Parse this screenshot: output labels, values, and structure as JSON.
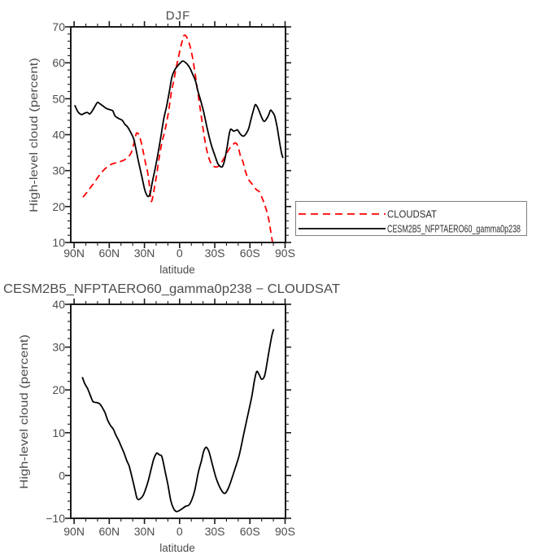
{
  "labels": {
    "top_title": "DJF",
    "bottom_title": "CESM2B5_NFPTAERO60_gamma0p238 − CLOUDSAT",
    "ylabel": "High-level cloud (percent)",
    "xlabel": "latitude"
  },
  "legend": {
    "entries": [
      {
        "label": "CLOUDSAT",
        "color": "#ff0000",
        "line": "dashed"
      },
      {
        "label": "CESM2B5_NFPTAERO60_gamma0p238",
        "color": "#000000",
        "line": "solid"
      }
    ]
  },
  "colors": {
    "axis": "#1a1a1a",
    "text": "#4d4d4d",
    "legend_border": "#808080",
    "cloudsat_red": "#ff0000",
    "model_black": "#000000",
    "background": "#ffffff"
  },
  "chart_data": [
    {
      "type": "line",
      "title": "DJF",
      "xlabel": "latitude",
      "ylabel": "High-level cloud (percent)",
      "ylim": [
        10,
        70
      ],
      "yticks": [
        10,
        20,
        30,
        40,
        50,
        60,
        70
      ],
      "y_minor_step": 2,
      "xticks": [
        {
          "lat": 90,
          "label": "90N"
        },
        {
          "lat": 60,
          "label": "60N"
        },
        {
          "lat": 30,
          "label": "30N"
        },
        {
          "lat": 0,
          "label": "0"
        },
        {
          "lat": -30,
          "label": "30S"
        },
        {
          "lat": -60,
          "label": "60S"
        },
        {
          "lat": -90,
          "label": "90S"
        }
      ],
      "x_minor_step_deg": 10,
      "legend_position": "outside-right",
      "series": [
        {
          "name": "CLOUDSAT",
          "color": "#ff0000",
          "line": "dashed",
          "points": [
            [
              82.5,
              22.6
            ],
            [
              79,
              24.0
            ],
            [
              76,
              25.3
            ],
            [
              73,
              26.6
            ],
            [
              70,
              28.0
            ],
            [
              67,
              29.3
            ],
            [
              64,
              30.4
            ],
            [
              61,
              31.2
            ],
            [
              58,
              31.8
            ],
            [
              55,
              32.1
            ],
            [
              52,
              32.3
            ],
            [
              50,
              32.6
            ],
            [
              47,
              33.0
            ],
            [
              44,
              33.8
            ],
            [
              41.5,
              34.8
            ],
            [
              39.5,
              36.9
            ],
            [
              38,
              38.9
            ],
            [
              36.8,
              40.4
            ],
            [
              35,
              40.1
            ],
            [
              33,
              38.2
            ],
            [
              31,
              35.2
            ],
            [
              29,
              32.0
            ],
            [
              27,
              29.0
            ],
            [
              25.5,
              25.0
            ],
            [
              24.3,
              21.5
            ],
            [
              23,
              22.5
            ],
            [
              21.5,
              25.2
            ],
            [
              19.5,
              29.0
            ],
            [
              17.5,
              33.5
            ],
            [
              15,
              38.0
            ],
            [
              13,
              40.5
            ],
            [
              11,
              43.5
            ],
            [
              9,
              47.3
            ],
            [
              7,
              51.9
            ],
            [
              5,
              55.0
            ],
            [
              3,
              58.5
            ],
            [
              1,
              61.5
            ],
            [
              -1,
              64.5
            ],
            [
              -2.5,
              66.3
            ],
            [
              -3.5,
              67.5
            ],
            [
              -5,
              67.6
            ],
            [
              -7,
              66.5
            ],
            [
              -9,
              64.5
            ],
            [
              -11,
              61.5
            ],
            [
              -13,
              57.5
            ],
            [
              -15,
              53.0
            ],
            [
              -17,
              48.5
            ],
            [
              -19,
              44.0
            ],
            [
              -21,
              39.5
            ],
            [
              -23,
              36.0
            ],
            [
              -25,
              33.5
            ],
            [
              -27,
              31.9
            ],
            [
              -29,
              31.2
            ],
            [
              -31,
              31.0
            ],
            [
              -33,
              31.2
            ],
            [
              -35,
              31.9
            ],
            [
              -38,
              33.5
            ],
            [
              -41,
              35.3
            ],
            [
              -44,
              36.8
            ],
            [
              -46,
              37.4
            ],
            [
              -48,
              37.7
            ],
            [
              -50,
              36.5
            ],
            [
              -52,
              34.0
            ],
            [
              -54,
              32.5
            ],
            [
              -56,
              30.0
            ],
            [
              -58.5,
              27.7
            ],
            [
              -62,
              26.2
            ],
            [
              -65.5,
              24.7
            ],
            [
              -68,
              24.1
            ],
            [
              -71,
              21.9
            ],
            [
              -73.5,
              19.6
            ],
            [
              -76,
              16.5
            ],
            [
              -77.6,
              13.4
            ],
            [
              -79.2,
              10.2
            ]
          ]
        },
        {
          "name": "CESM2B5_NFPTAERO60_gamma0p238",
          "color": "#000000",
          "line": "solid",
          "points": [
            [
              89.5,
              48.2
            ],
            [
              87,
              46.5
            ],
            [
              85,
              45.8
            ],
            [
              83.5,
              45.6
            ],
            [
              81.5,
              45.9
            ],
            [
              79,
              46.2
            ],
            [
              77.5,
              45.9
            ],
            [
              76.5,
              45.8
            ],
            [
              74.5,
              46.6
            ],
            [
              72,
              48.0
            ],
            [
              70,
              49.0
            ],
            [
              68,
              48.6
            ],
            [
              65,
              47.9
            ],
            [
              63,
              47.4
            ],
            [
              61,
              47.1
            ],
            [
              59,
              46.9
            ],
            [
              57,
              46.6
            ],
            [
              55,
              45.2
            ],
            [
              52,
              44.5
            ],
            [
              49,
              44.0
            ],
            [
              46.5,
              42.8
            ],
            [
              44.5,
              42.2
            ],
            [
              42,
              40.8
            ],
            [
              40,
              39.5
            ],
            [
              38.5,
              38.0
            ],
            [
              35.5,
              33.2
            ],
            [
              32,
              28.0
            ],
            [
              29.5,
              24.4
            ],
            [
              27,
              22.8
            ],
            [
              25,
              23.8
            ],
            [
              23.5,
              26.4
            ],
            [
              20,
              32.0
            ],
            [
              16.5,
              38.4
            ],
            [
              13.5,
              44.4
            ],
            [
              11,
              48.0
            ],
            [
              8.5,
              52.5
            ],
            [
              6.5,
              56.1
            ],
            [
              4,
              58.1
            ],
            [
              1.5,
              59.2
            ],
            [
              -0.5,
              59.9
            ],
            [
              -3,
              60.5
            ],
            [
              -6.5,
              59.6
            ],
            [
              -9,
              58.4
            ],
            [
              -11,
              56.9
            ],
            [
              -13.5,
              55.0
            ],
            [
              -15.5,
              52.3
            ],
            [
              -18,
              49.5
            ],
            [
              -20.5,
              46.4
            ],
            [
              -23.5,
              41.8
            ],
            [
              -27,
              37.2
            ],
            [
              -30,
              34.3
            ],
            [
              -32.5,
              32.0
            ],
            [
              -34.5,
              31.2
            ],
            [
              -36.5,
              31.1
            ],
            [
              -38.5,
              33.0
            ],
            [
              -40.5,
              36.5
            ],
            [
              -42,
              39.5
            ],
            [
              -43.5,
              41.5
            ],
            [
              -46,
              41.0
            ],
            [
              -48,
              41.2
            ],
            [
              -49.5,
              41.3
            ],
            [
              -52,
              40.1
            ],
            [
              -54.5,
              39.6
            ],
            [
              -57,
              40.4
            ],
            [
              -59,
              41.8
            ],
            [
              -61,
              44.4
            ],
            [
              -63,
              46.8
            ],
            [
              -64.5,
              48.3
            ],
            [
              -66,
              47.9
            ],
            [
              -68,
              46.5
            ],
            [
              -70,
              44.8
            ],
            [
              -72,
              43.7
            ],
            [
              -74,
              44.3
            ],
            [
              -76,
              45.5
            ],
            [
              -77.5,
              46.8
            ],
            [
              -79,
              46.4
            ],
            [
              -81,
              45.3
            ],
            [
              -83,
              42.5
            ],
            [
              -85,
              38.5
            ],
            [
              -87,
              34.8
            ],
            [
              -88.3,
              33.5
            ]
          ]
        }
      ]
    },
    {
      "type": "line",
      "title": "CESM2B5_NFPTAERO60_gamma0p238 − CLOUDSAT",
      "xlabel": "latitude",
      "ylabel": "High-level cloud (percent)",
      "ylim": [
        -10,
        40
      ],
      "yticks": [
        -10,
        0,
        10,
        20,
        30,
        40
      ],
      "y_minor_step": 2,
      "xticks": [
        {
          "lat": 90,
          "label": "90N"
        },
        {
          "lat": 60,
          "label": "60N"
        },
        {
          "lat": 30,
          "label": "30N"
        },
        {
          "lat": 0,
          "label": "0"
        },
        {
          "lat": -30,
          "label": "30S"
        },
        {
          "lat": -60,
          "label": "60S"
        },
        {
          "lat": -90,
          "label": "90S"
        }
      ],
      "x_minor_step_deg": 10,
      "series": [
        {
          "name": "CESM2B5_NFPTAERO60_gamma0p238 minus CLOUDSAT",
          "color": "#000000",
          "line": "solid",
          "points": [
            [
              83,
              23.0
            ],
            [
              81,
              21.5
            ],
            [
              78.5,
              20.3
            ],
            [
              76,
              18.6
            ],
            [
              74,
              17.3
            ],
            [
              72,
              17.1
            ],
            [
              70,
              17.0
            ],
            [
              68,
              16.7
            ],
            [
              66,
              15.9
            ],
            [
              63.5,
              14.6
            ],
            [
              61.5,
              13.0
            ],
            [
              59,
              11.7
            ],
            [
              56.5,
              10.8
            ],
            [
              54.5,
              9.5
            ],
            [
              52,
              8.2
            ],
            [
              50,
              6.9
            ],
            [
              47.5,
              5.3
            ],
            [
              45,
              3.4
            ],
            [
              43,
              2.2
            ],
            [
              40.5,
              -0.5
            ],
            [
              38,
              -3.4
            ],
            [
              36.5,
              -5.2
            ],
            [
              35,
              -5.6
            ],
            [
              33,
              -5.3
            ],
            [
              31,
              -4.6
            ],
            [
              29,
              -3.2
            ],
            [
              26.5,
              -1.0
            ],
            [
              24,
              1.8
            ],
            [
              22,
              3.9
            ],
            [
              20,
              5.1
            ],
            [
              19,
              5.2
            ],
            [
              17,
              4.8
            ],
            [
              15,
              4.3
            ],
            [
              12,
              0.5
            ],
            [
              10,
              -2.1
            ],
            [
              7.5,
              -5.9
            ],
            [
              5,
              -7.8
            ],
            [
              3,
              -8.4
            ],
            [
              1,
              -8.3
            ],
            [
              -2,
              -7.8
            ],
            [
              -5,
              -7.2
            ],
            [
              -8,
              -6.9
            ],
            [
              -10.5,
              -5.6
            ],
            [
              -13,
              -3.4
            ],
            [
              -16,
              0.8
            ],
            [
              -18.5,
              3.3
            ],
            [
              -20.5,
              5.6
            ],
            [
              -22.5,
              6.6
            ],
            [
              -24,
              6.2
            ],
            [
              -25.5,
              5.2
            ],
            [
              -28.5,
              2.0
            ],
            [
              -31.5,
              -0.9
            ],
            [
              -35,
              -3.1
            ],
            [
              -38.5,
              -4.2
            ],
            [
              -42,
              -2.7
            ],
            [
              -45.5,
              0.1
            ],
            [
              -48.5,
              2.6
            ],
            [
              -51,
              4.9
            ],
            [
              -54.5,
              9.4
            ],
            [
              -58,
              13.9
            ],
            [
              -61.5,
              18.3
            ],
            [
              -63.8,
              22.1
            ],
            [
              -65.8,
              24.3
            ],
            [
              -68,
              23.5
            ],
            [
              -70,
              22.5
            ],
            [
              -72.5,
              23.3
            ],
            [
              -74.5,
              26.2
            ],
            [
              -77,
              30.2
            ],
            [
              -79,
              33.0
            ],
            [
              -80.3,
              34.2
            ]
          ]
        }
      ]
    }
  ]
}
